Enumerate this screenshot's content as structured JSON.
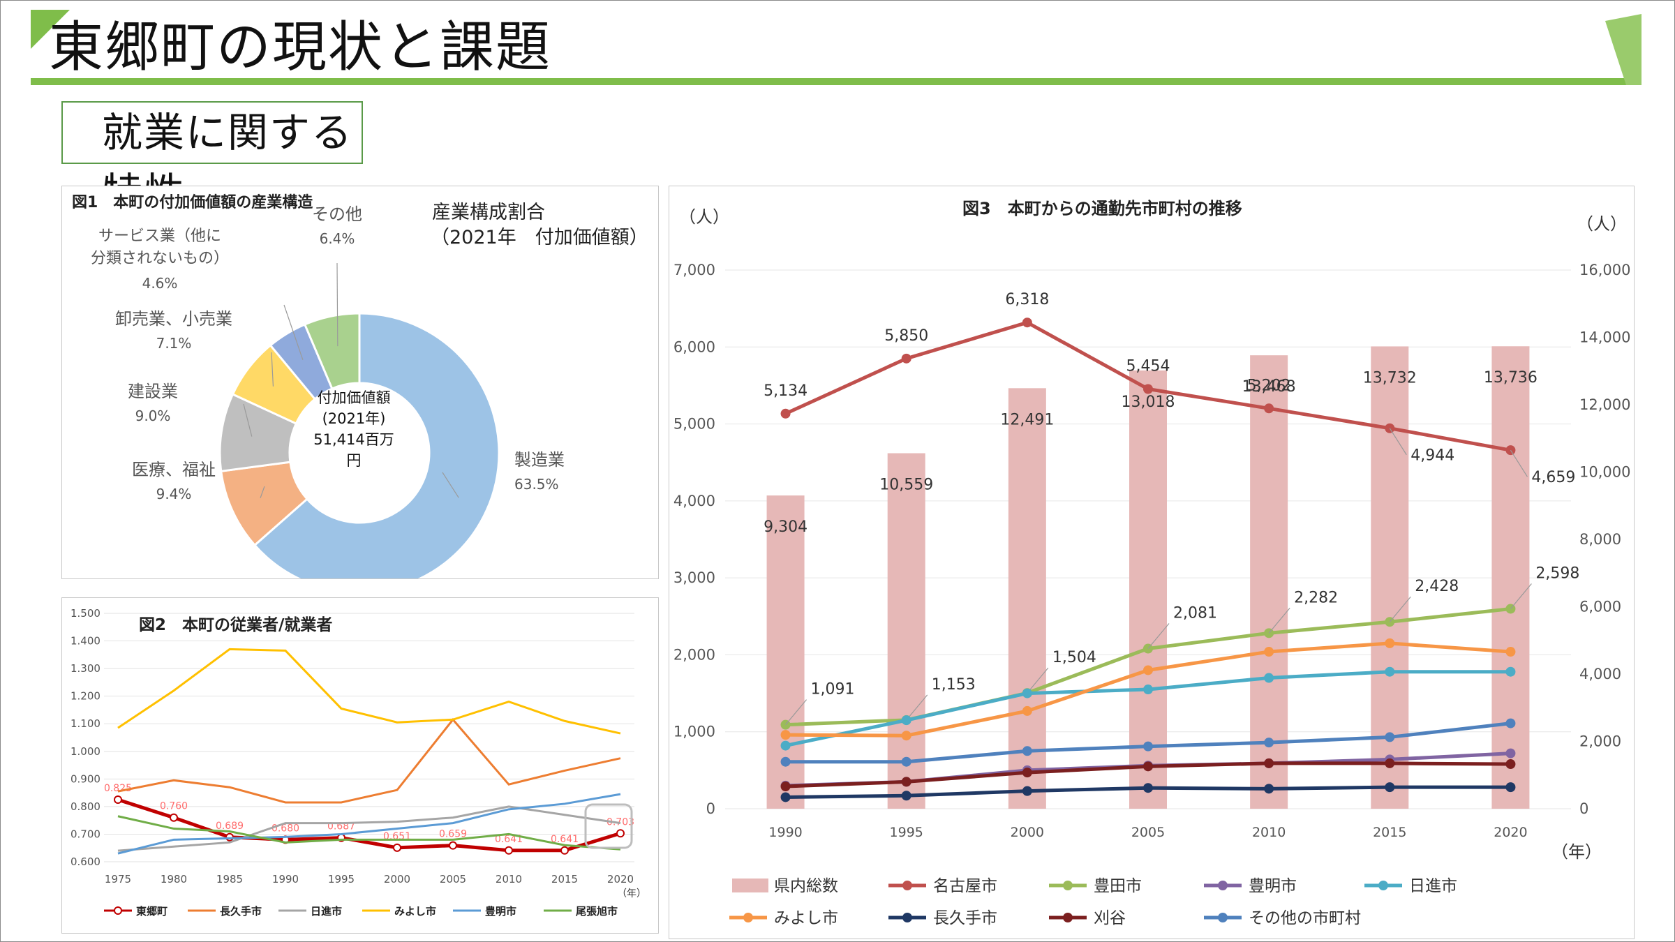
{
  "page": {
    "title": "東郷町の現状と課題",
    "subtitle": "就業に関する特性",
    "colors": {
      "accent_green": "#7fbd4a",
      "frame": "#8a8a8a"
    }
  },
  "chart_data": [
    {
      "id": "fig1",
      "type": "pie",
      "title": "図1　本町の付加価値額の産業構造",
      "caption_line1": "産業構成割合",
      "caption_line2": "（2021年　付加価値額）",
      "center_line1": "付加価値額",
      "center_line2": "(2021年)",
      "center_line3": "51,414百万",
      "center_line4": "円",
      "slices": [
        {
          "label": "製造業",
          "value": 63.5,
          "pct_label": "63.5%",
          "color": "#9dc3e6"
        },
        {
          "label": "医療、福祉",
          "value": 9.4,
          "pct_label": "9.4%",
          "color": "#f4b183"
        },
        {
          "label": "建設業",
          "value": 9.0,
          "pct_label": "9.0%",
          "color": "#bfbfbf"
        },
        {
          "label": "卸売業、小売業",
          "value": 7.1,
          "pct_label": "7.1%",
          "color": "#ffd966"
        },
        {
          "label_line1": "サービス業（他に",
          "label_line2": "分類されないもの）",
          "value": 4.6,
          "pct_label": "4.6%",
          "color": "#8faadc"
        },
        {
          "label": "その他",
          "value": 6.4,
          "pct_label": "6.4%",
          "color": "#a9d18e"
        }
      ]
    },
    {
      "id": "fig2",
      "type": "line",
      "title": "図2　本町の従業者/就業者",
      "unit_label": "（年）",
      "x": [
        "1975",
        "1980",
        "1985",
        "1990",
        "1995",
        "2000",
        "2005",
        "2010",
        "2015",
        "2020"
      ],
      "y_ticks": [
        "1.500",
        "1.400",
        "1.300",
        "1.200",
        "1.100",
        "1.000",
        "0.900",
        "0.800",
        "0.700",
        "0.600"
      ],
      "ylim": [
        0.6,
        1.5
      ],
      "series": [
        {
          "name": "東郷町",
          "color": "#c00000",
          "values": [
            0.825,
            0.76,
            0.689,
            0.68,
            0.687,
            0.651,
            0.659,
            0.641,
            0.641,
            0.703
          ],
          "labels": [
            "0.825",
            "0.760",
            "0.689",
            "0.680",
            "0.687",
            "0.651",
            "0.659",
            "0.641",
            "0.641",
            "0.703"
          ]
        },
        {
          "name": "長久手市",
          "color": "#ed7d31",
          "values": [
            0.855,
            0.895,
            0.87,
            0.815,
            0.815,
            0.86,
            1.115,
            0.88,
            0.93,
            0.975
          ]
        },
        {
          "name": "日進市",
          "color": "#a5a5a5",
          "values": [
            0.64,
            0.655,
            0.67,
            0.74,
            0.74,
            0.745,
            0.76,
            0.8,
            0.77,
            0.74
          ]
        },
        {
          "name": "みよし市",
          "color": "#ffc000",
          "values": [
            1.085,
            1.22,
            1.37,
            1.365,
            1.155,
            1.105,
            1.115,
            1.18,
            1.11,
            1.065
          ]
        },
        {
          "name": "豊明市",
          "color": "#5b9bd5",
          "values": [
            0.63,
            0.68,
            0.685,
            0.69,
            0.7,
            0.72,
            0.74,
            0.79,
            0.81,
            0.845
          ]
        },
        {
          "name": "尾張旭市",
          "color": "#70ad47",
          "values": [
            0.765,
            0.72,
            0.71,
            0.67,
            0.68,
            0.68,
            0.68,
            0.7,
            0.66,
            0.645
          ]
        }
      ]
    },
    {
      "id": "fig3",
      "type": "bar+line",
      "title": "図3　本町からの通勤先市町村の推移",
      "left_unit": "（人）",
      "right_unit": "（人）",
      "x_unit": "（年）",
      "x": [
        "1990",
        "1995",
        "2000",
        "2005",
        "2010",
        "2015",
        "2020"
      ],
      "left_ticks": [
        "7,000",
        "6,000",
        "5,000",
        "4,000",
        "3,000",
        "2,000",
        "1,000",
        "0"
      ],
      "right_ticks": [
        "16,000",
        "14,000",
        "12,000",
        "10,000",
        "8,000",
        "6,000",
        "4,000",
        "2,000",
        "0"
      ],
      "left_ylim": [
        0,
        7000
      ],
      "right_ylim": [
        0,
        16000
      ],
      "bars": {
        "name": "県内総数",
        "color": "#e6b8b7",
        "values": [
          9304,
          10559,
          12491,
          13018,
          13468,
          13732,
          13736
        ],
        "labels": [
          "9,304",
          "10,559",
          "12,491",
          "13,018",
          "13,468",
          "13,732",
          "13,736"
        ]
      },
      "series": [
        {
          "name": "名古屋市",
          "color": "#c0504d",
          "values": [
            5134,
            5850,
            6318,
            5454,
            5202,
            4944,
            4659
          ],
          "labels": [
            "5,134",
            "5,850",
            "6,318",
            "5,454",
            "5,202",
            "4,944",
            "4,659"
          ]
        },
        {
          "name": "豊田市",
          "color": "#9bbb59",
          "values": [
            1091,
            1153,
            1504,
            2081,
            2282,
            2428,
            2598
          ],
          "labels": [
            "1,091",
            "1,153",
            "1,504",
            "2,081",
            "2,282",
            "2,428",
            "2,598"
          ]
        },
        {
          "name": "豊明市",
          "color": "#8064a2",
          "values": [
            300,
            350,
            500,
            560,
            590,
            640,
            720
          ]
        },
        {
          "name": "日進市",
          "color": "#4bacc6",
          "values": [
            820,
            1150,
            1500,
            1550,
            1700,
            1780,
            1780
          ]
        },
        {
          "name": "みよし市",
          "color": "#f79646",
          "values": [
            960,
            950,
            1270,
            1800,
            2040,
            2150,
            2040
          ]
        },
        {
          "name": "長久手市",
          "color": "#1f3864",
          "values": [
            150,
            170,
            230,
            270,
            260,
            280,
            280
          ]
        },
        {
          "name": "刈谷",
          "color": "#7b1f1f",
          "values": [
            290,
            350,
            470,
            550,
            590,
            590,
            580
          ]
        },
        {
          "name": "その他の市町村",
          "color": "#4f81bd",
          "values": [
            610,
            610,
            750,
            810,
            860,
            930,
            1110
          ]
        }
      ]
    }
  ]
}
